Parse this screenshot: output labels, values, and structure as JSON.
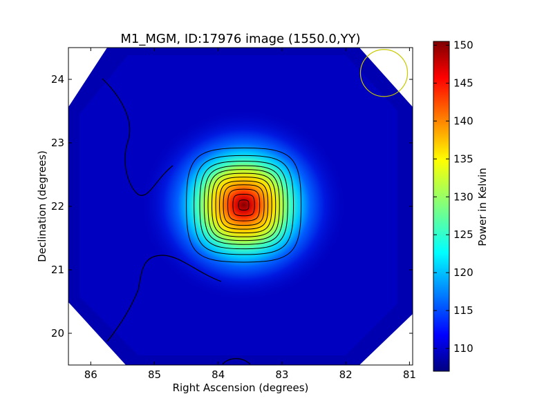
{
  "chart_data": {
    "type": "heatmap",
    "title": "M1_MGM, ID:17976 image (1550.0,YY)",
    "xlabel": "Right Ascension (degrees)",
    "ylabel": "Declination (degrees)",
    "xlim": [
      86.35,
      80.95
    ],
    "ylim": [
      19.5,
      24.5
    ],
    "x_ticks": [
      86,
      85,
      84,
      83,
      82,
      81
    ],
    "y_ticks": [
      20,
      21,
      22,
      23,
      24
    ],
    "x_tick_labels": [
      "86",
      "85",
      "84",
      "83",
      "82",
      "81"
    ],
    "y_tick_labels": [
      "20",
      "21",
      "22",
      "23",
      "24"
    ],
    "colorbar": {
      "label": "Power in Kelvin",
      "range": [
        107,
        150.5
      ],
      "ticks": [
        110,
        115,
        120,
        125,
        130,
        135,
        140,
        145,
        150
      ],
      "tick_labels": [
        "110",
        "115",
        "120",
        "125",
        "130",
        "135",
        "140",
        "145",
        "150"
      ],
      "colormap": "jet"
    },
    "field": {
      "background_value": 108,
      "source_peak": {
        "ra": 83.6,
        "dec": 22.02,
        "value": 150
      },
      "footprint": "octagon"
    },
    "contours": [
      {
        "ra": 83.6,
        "dec": 22.02,
        "size_deg": 0.08
      },
      {
        "ra": 83.6,
        "dec": 22.02,
        "size_deg": 0.17
      },
      {
        "ra": 83.6,
        "dec": 22.02,
        "size_deg": 0.25
      },
      {
        "ra": 83.6,
        "dec": 22.02,
        "size_deg": 0.32
      },
      {
        "ra": 83.6,
        "dec": 22.02,
        "size_deg": 0.38
      },
      {
        "ra": 83.6,
        "dec": 22.02,
        "size_deg": 0.44
      },
      {
        "ra": 83.6,
        "dec": 22.02,
        "size_deg": 0.5
      },
      {
        "ra": 83.6,
        "dec": 22.02,
        "size_deg": 0.56
      },
      {
        "ra": 83.6,
        "dec": 22.02,
        "size_deg": 0.62
      },
      {
        "ra": 83.6,
        "dec": 22.02,
        "size_deg": 0.69
      },
      {
        "ra": 83.6,
        "dec": 22.02,
        "size_deg": 0.78
      },
      {
        "ra": 83.6,
        "dec": 22.02,
        "size_deg": 0.9
      }
    ],
    "beam": {
      "ra": 81.4,
      "dec": 24.1,
      "radius_deg": 0.37,
      "color": "#c8c800"
    },
    "colors": {
      "axis": "#000000",
      "contour": "#000000"
    }
  }
}
